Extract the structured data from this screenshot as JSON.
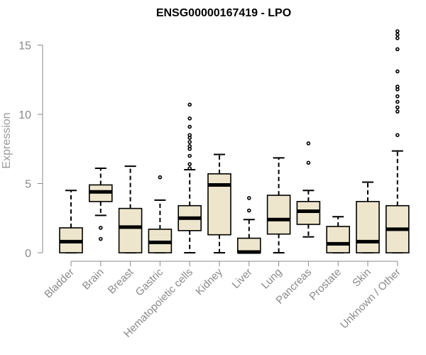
{
  "chart_data": {
    "type": "box",
    "title": "ENSG00000167419 - LPO",
    "xlabel": "",
    "ylabel": "Expression",
    "ylim": [
      0,
      16
    ],
    "yticks": [
      0,
      5,
      10,
      15
    ],
    "colors": {
      "box_fill": "#ede6cc",
      "stroke": "#000000",
      "axis": "#8a8a8a",
      "label": "#8a8a8a"
    },
    "categories": [
      "Bladder",
      "Brain",
      "Breast",
      "Gastric",
      "Hematopoietic cells",
      "Kidney",
      "Liver",
      "Lung",
      "Pancreas",
      "Prostate",
      "Skin",
      "Unknown / Other"
    ],
    "boxes": [
      {
        "whisker_low": 0.0,
        "q1": 0.0,
        "median": 0.8,
        "q3": 1.8,
        "whisker_high": 4.5,
        "outliers": []
      },
      {
        "whisker_low": 2.7,
        "q1": 3.7,
        "median": 4.4,
        "q3": 4.9,
        "whisker_high": 6.1,
        "outliers": [
          1.0,
          1.8
        ]
      },
      {
        "whisker_low": 0.0,
        "q1": 0.0,
        "median": 1.85,
        "q3": 3.2,
        "whisker_high": 6.25,
        "outliers": []
      },
      {
        "whisker_low": 0.0,
        "q1": 0.0,
        "median": 0.75,
        "q3": 1.7,
        "whisker_high": 3.8,
        "outliers": [
          5.45
        ]
      },
      {
        "whisker_low": 0.0,
        "q1": 1.6,
        "median": 2.5,
        "q3": 3.4,
        "whisker_high": 6.0,
        "outliers": [
          6.1,
          6.4,
          7.0,
          7.5,
          7.7,
          8.0,
          8.3,
          8.5,
          9.1,
          9.7,
          10.7
        ]
      },
      {
        "whisker_low": 0.0,
        "q1": 1.3,
        "median": 4.9,
        "q3": 5.7,
        "whisker_high": 7.1,
        "outliers": []
      },
      {
        "whisker_low": 0.0,
        "q1": 0.0,
        "median": 0.05,
        "q3": 1.05,
        "whisker_high": 2.4,
        "outliers": [
          3.05,
          3.95
        ]
      },
      {
        "whisker_low": 0.0,
        "q1": 1.35,
        "median": 2.4,
        "q3": 4.15,
        "whisker_high": 6.85,
        "outliers": []
      },
      {
        "whisker_low": 1.15,
        "q1": 2.05,
        "median": 3.0,
        "q3": 3.7,
        "whisker_high": 4.5,
        "outliers": [
          6.5,
          7.9
        ]
      },
      {
        "whisker_low": 0.0,
        "q1": 0.0,
        "median": 0.65,
        "q3": 1.9,
        "whisker_high": 2.6,
        "outliers": []
      },
      {
        "whisker_low": 0.0,
        "q1": 0.0,
        "median": 0.8,
        "q3": 3.7,
        "whisker_high": 5.1,
        "outliers": []
      },
      {
        "whisker_low": 0.0,
        "q1": 0.0,
        "median": 1.7,
        "q3": 3.4,
        "whisker_high": 7.35,
        "outliers": [
          8.5,
          10.2,
          10.5,
          10.9,
          11.3,
          11.8,
          12.0,
          13.1,
          14.7,
          15.5,
          15.75,
          16.0
        ]
      }
    ]
  }
}
